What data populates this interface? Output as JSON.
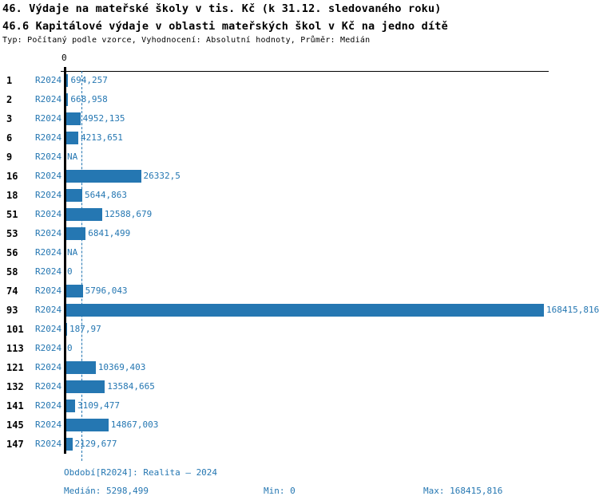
{
  "header": {
    "title1": "46. Výdaje na mateřské školy v tis. Kč (k 31.12. sledovaného roku)",
    "title2": "46.6 Kapitálové výdaje v oblasti mateřských škol v Kč na jedno dítě",
    "meta": "Typ: Počítaný podle vzorce, Vyhodnocení: Absolutní hodnoty, Průměr: Medián"
  },
  "chart_data": {
    "type": "bar",
    "orientation": "horizontal",
    "title": "46.6 Kapitálové výdaje v oblasti mateřských škol v Kč na jedno dítě",
    "zero_tick": "0",
    "period_series": "R2024",
    "categories": [
      "1",
      "2",
      "3",
      "6",
      "9",
      "16",
      "18",
      "51",
      "53",
      "56",
      "58",
      "74",
      "93",
      "101",
      "113",
      "121",
      "132",
      "141",
      "145",
      "147"
    ],
    "values": [
      694.257,
      668.958,
      4952.135,
      4213.651,
      null,
      26332.5,
      5644.863,
      12588.679,
      6841.499,
      null,
      0,
      5796.043,
      168415.816,
      187.97,
      0,
      10369.403,
      13584.665,
      3109.477,
      14867.003,
      2129.677
    ],
    "value_labels": [
      "694,257",
      "668,958",
      "4952,135",
      "4213,651",
      "NA",
      "26332,5",
      "5644,863",
      "12588,679",
      "6841,499",
      "NA",
      "0",
      "5796,043",
      "168415,816",
      "187,97",
      "0",
      "10369,403",
      "13584,665",
      "3109,477",
      "14867,003",
      "2129,677"
    ],
    "xlim": [
      0,
      168415.816
    ],
    "median": 5298.499,
    "legend_position": "none",
    "grid": "median dashed vertical line only",
    "bar_color": "#2577b2"
  },
  "footer": {
    "period": "Období[R2024]: Realita – 2024",
    "median": "Medián: 5298,499",
    "min": "Min: 0",
    "max": "Max: 168415,816"
  },
  "colors": {
    "accent": "#2577b2",
    "axis": "#000000",
    "background": "#ffffff"
  }
}
